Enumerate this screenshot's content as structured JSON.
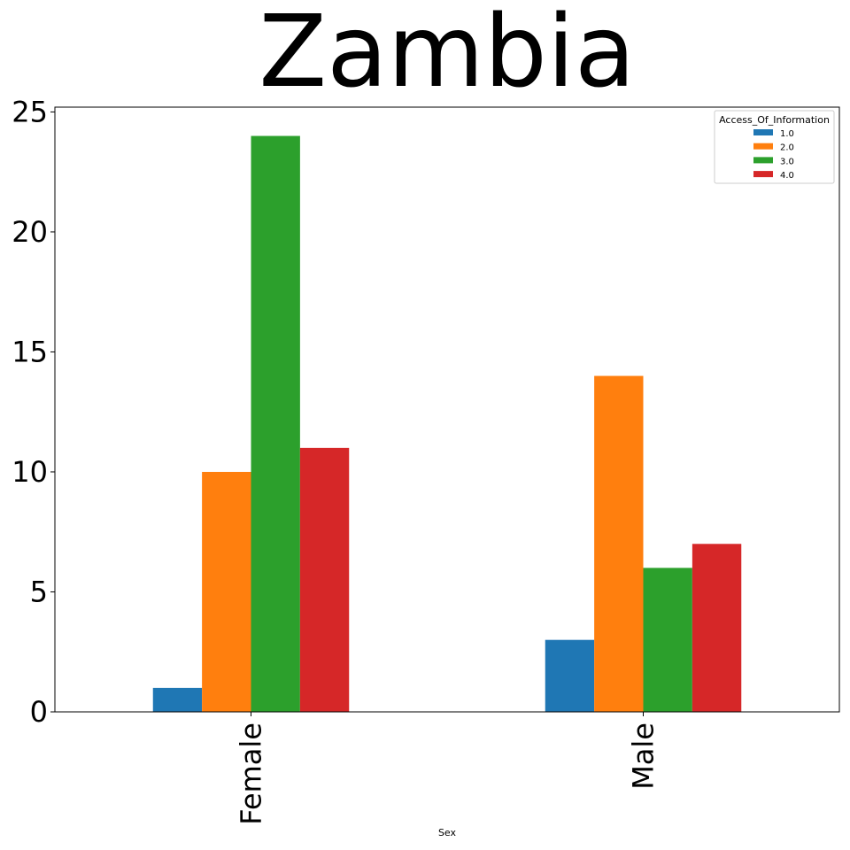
{
  "chart_data": {
    "type": "bar",
    "title": "Zambia",
    "xlabel": "Sex",
    "ylabel": "",
    "categories": [
      "Female",
      "Male"
    ],
    "legend_title": "Access_Of_Information",
    "legend_position": "top-right",
    "ylim": [
      0,
      25.2
    ],
    "yticks": [
      0,
      5,
      10,
      15,
      20,
      25
    ],
    "ytick_labels": [
      "0",
      "5",
      "10",
      "15",
      "20",
      "25"
    ],
    "grid": false,
    "series": [
      {
        "name": "1.0",
        "color": "#1f77b4",
        "values": [
          1,
          3
        ]
      },
      {
        "name": "2.0",
        "color": "#ff7f0e",
        "values": [
          10,
          14
        ]
      },
      {
        "name": "3.0",
        "color": "#2ca02c",
        "values": [
          24,
          6
        ]
      },
      {
        "name": "4.0",
        "color": "#d62728",
        "values": [
          11,
          7
        ]
      }
    ]
  }
}
